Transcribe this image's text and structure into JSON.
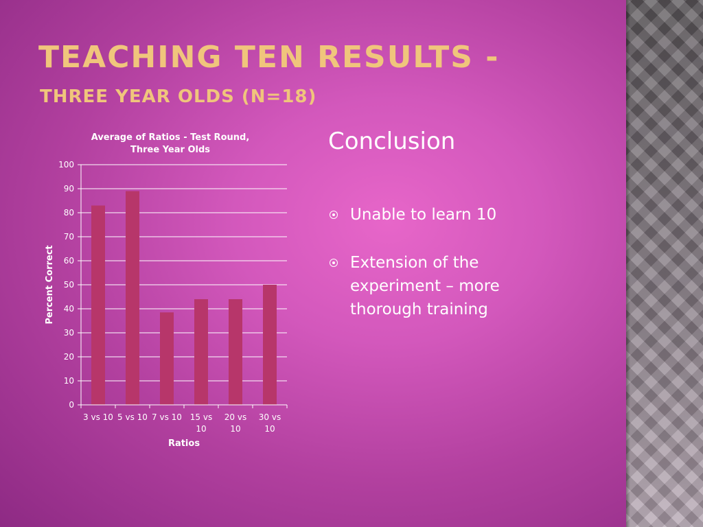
{
  "slide": {
    "title": "Teaching Ten Results -",
    "subtitle": "Three Year Olds (n=18)",
    "colors": {
      "title": "#f0c57c",
      "bar": "#b7366a",
      "text": "#ffffff"
    }
  },
  "conclusion": {
    "heading": "Conclusion",
    "bullets": [
      "Unable to learn 10",
      "Extension of the experiment – more thorough training"
    ]
  },
  "chart_data": {
    "type": "bar",
    "title": "Average of Ratios - Test Round, Three Year Olds",
    "xlabel": "Ratios",
    "ylabel": "Percent Correct",
    "categories": [
      "3 vs 10",
      "5 vs 10",
      "7 vs 10",
      "15 vs 10",
      "20 vs 10",
      "30 vs 10"
    ],
    "values": [
      83,
      89,
      38.5,
      44,
      44,
      50
    ],
    "ylim": [
      0,
      100
    ],
    "yticks": [
      0,
      10,
      20,
      30,
      40,
      50,
      60,
      70,
      80,
      90,
      100
    ],
    "grid": true,
    "legend": "none"
  }
}
